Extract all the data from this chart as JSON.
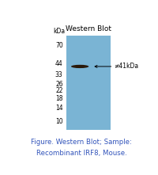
{
  "title": "Western Blot",
  "figure_caption_line1": "Figure. Western Blot; Sample:",
  "figure_caption_line2": "Recombinant IRF8, Mouse.",
  "blot_color": "#7ab4d4",
  "band_label": "≠41kDa",
  "band_kda": 41,
  "ladder_labels": [
    "70",
    "44",
    "33",
    "26",
    "22",
    "18",
    "14",
    "10"
  ],
  "ladder_kdas": [
    70,
    44,
    33,
    26,
    22,
    18,
    14,
    10
  ],
  "kda_label": "kDa",
  "title_color": "#000000",
  "caption_color": "#3355bb",
  "band_color": "#2a1a0a",
  "arrow_color": "#000000",
  "background_color": "#ffffff",
  "kda_min": 8,
  "kda_max": 90
}
